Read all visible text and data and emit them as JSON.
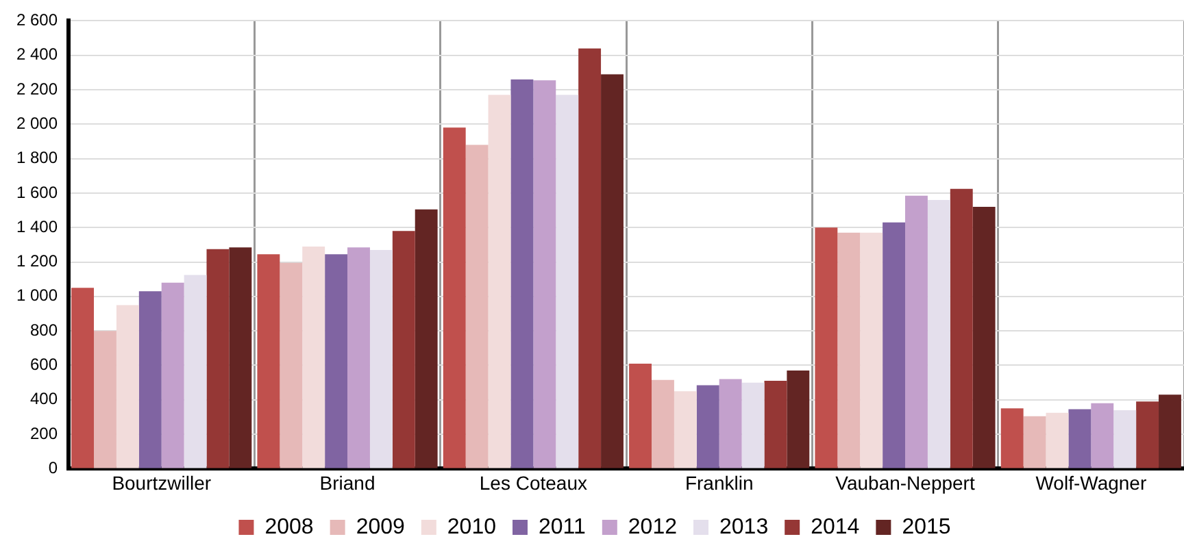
{
  "chart_data": {
    "type": "bar",
    "categories": [
      "Bourtzwiller",
      "Briand",
      "Les Coteaux",
      "Franklin",
      "Vauban-Neppert",
      "Wolf-Wagner"
    ],
    "series": [
      {
        "name": "2008",
        "color": "#c0504d",
        "values": [
          1050,
          1245,
          1980,
          610,
          1400,
          350
        ]
      },
      {
        "name": "2009",
        "color": "#e6b9b8",
        "values": [
          800,
          1195,
          1880,
          515,
          1370,
          305
        ]
      },
      {
        "name": "2010",
        "color": "#f2dcdb",
        "values": [
          950,
          1290,
          2170,
          450,
          1370,
          325
        ]
      },
      {
        "name": "2011",
        "color": "#8064a2",
        "values": [
          1030,
          1245,
          2260,
          485,
          1430,
          345
        ]
      },
      {
        "name": "2012",
        "color": "#c3a0cc",
        "values": [
          1080,
          1285,
          2255,
          520,
          1585,
          380
        ]
      },
      {
        "name": "2013",
        "color": "#e4dfec",
        "values": [
          1125,
          1270,
          2170,
          500,
          1560,
          340
        ]
      },
      {
        "name": "2014",
        "color": "#953735",
        "values": [
          1275,
          1380,
          2440,
          510,
          1625,
          390
        ]
      },
      {
        "name": "2015",
        "color": "#632523",
        "values": [
          1285,
          1505,
          2290,
          570,
          1520,
          430
        ]
      }
    ],
    "ylim": [
      0,
      2600
    ],
    "yticks": [
      0,
      200,
      400,
      600,
      800,
      {
        "value": 1000,
        "label": "1 000"
      },
      {
        "value": 1200,
        "label": "1 200"
      },
      {
        "value": 1400,
        "label": "1 400"
      },
      {
        "value": 1600,
        "label": "1 600"
      },
      {
        "value": 1800,
        "label": "1 800"
      },
      {
        "value": 2000,
        "label": "2 000"
      },
      {
        "value": 2200,
        "label": "2 200"
      },
      {
        "value": 2400,
        "label": "2 400"
      },
      {
        "value": 2600,
        "label": "2 600"
      }
    ],
    "grid": true,
    "legend": "bottom"
  }
}
